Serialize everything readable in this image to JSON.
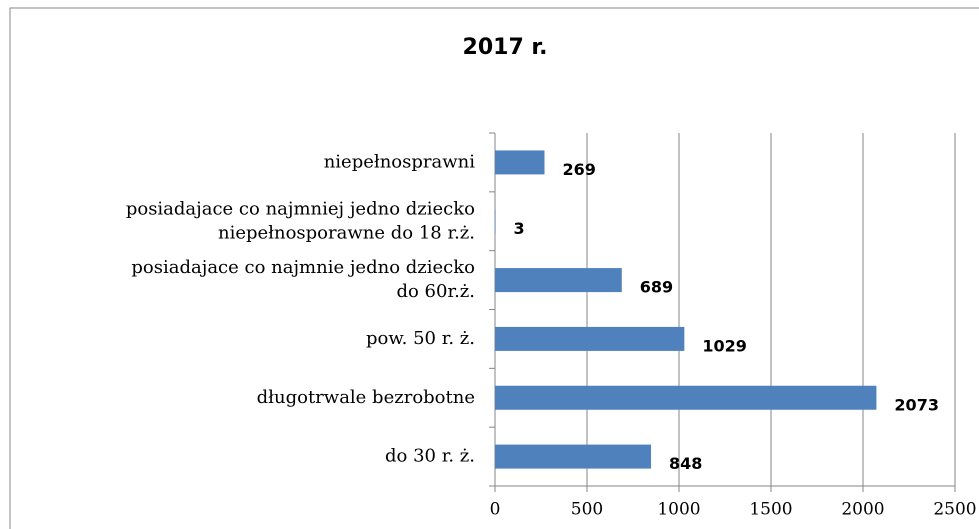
{
  "chart_data": {
    "type": "bar",
    "orientation": "horizontal",
    "title": "2017 r.",
    "categories": [
      [
        "niepełnosprawni"
      ],
      [
        "posiadajace co najmniej jedno dziecko",
        "niepełnosporawne do 18 r.ż."
      ],
      [
        "posiadajace co najmnie jedno dziecko",
        "do 60r.ż."
      ],
      [
        "pow. 50 r. ż."
      ],
      [
        "długotrwale bezrobotne"
      ],
      [
        "do 30 r. ż."
      ]
    ],
    "values": [
      269,
      3,
      689,
      1029,
      2073,
      848
    ],
    "color": "#4f81bd",
    "xlim": [
      0,
      2500
    ],
    "xticks": [
      0,
      500,
      1000,
      1500,
      2000,
      2500
    ],
    "grid": true
  }
}
